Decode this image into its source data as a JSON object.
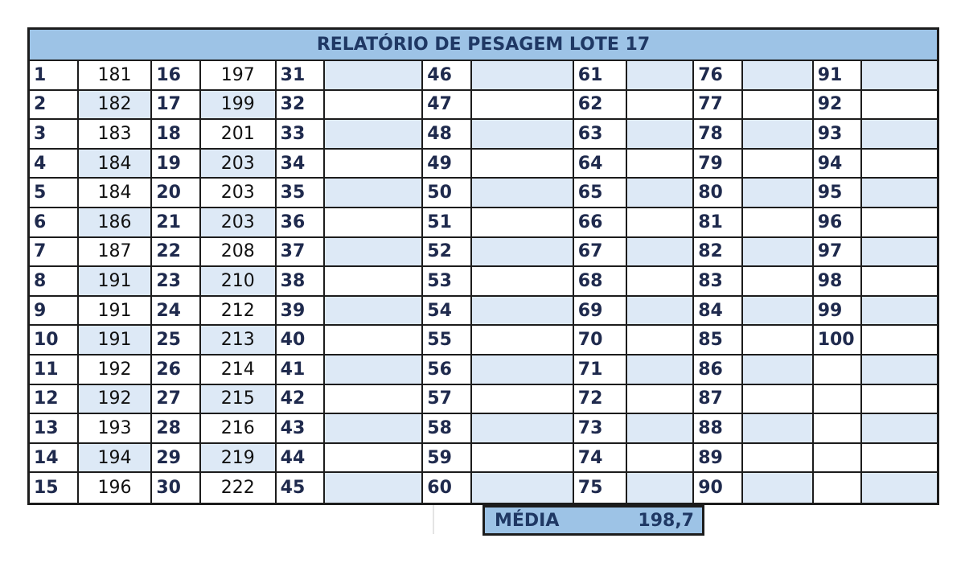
{
  "title": "RELATÓRIO DE PESAGEM LOTE 17",
  "weights": [
    "181",
    "182",
    "183",
    "184",
    "184",
    "186",
    "187",
    "191",
    "191",
    "191",
    "192",
    "192",
    "193",
    "194",
    "196",
    "197",
    "199",
    "201",
    "203",
    "203",
    "203",
    "208",
    "210",
    "212",
    "213",
    "214",
    "215",
    "216",
    "219",
    "222"
  ],
  "summary": {
    "label": "MÉDIA",
    "value": "198,7"
  },
  "colors": {
    "header_bg": "#9dc3e6",
    "row_shade": "#dde9f6",
    "text_dark": "#1f3864"
  }
}
